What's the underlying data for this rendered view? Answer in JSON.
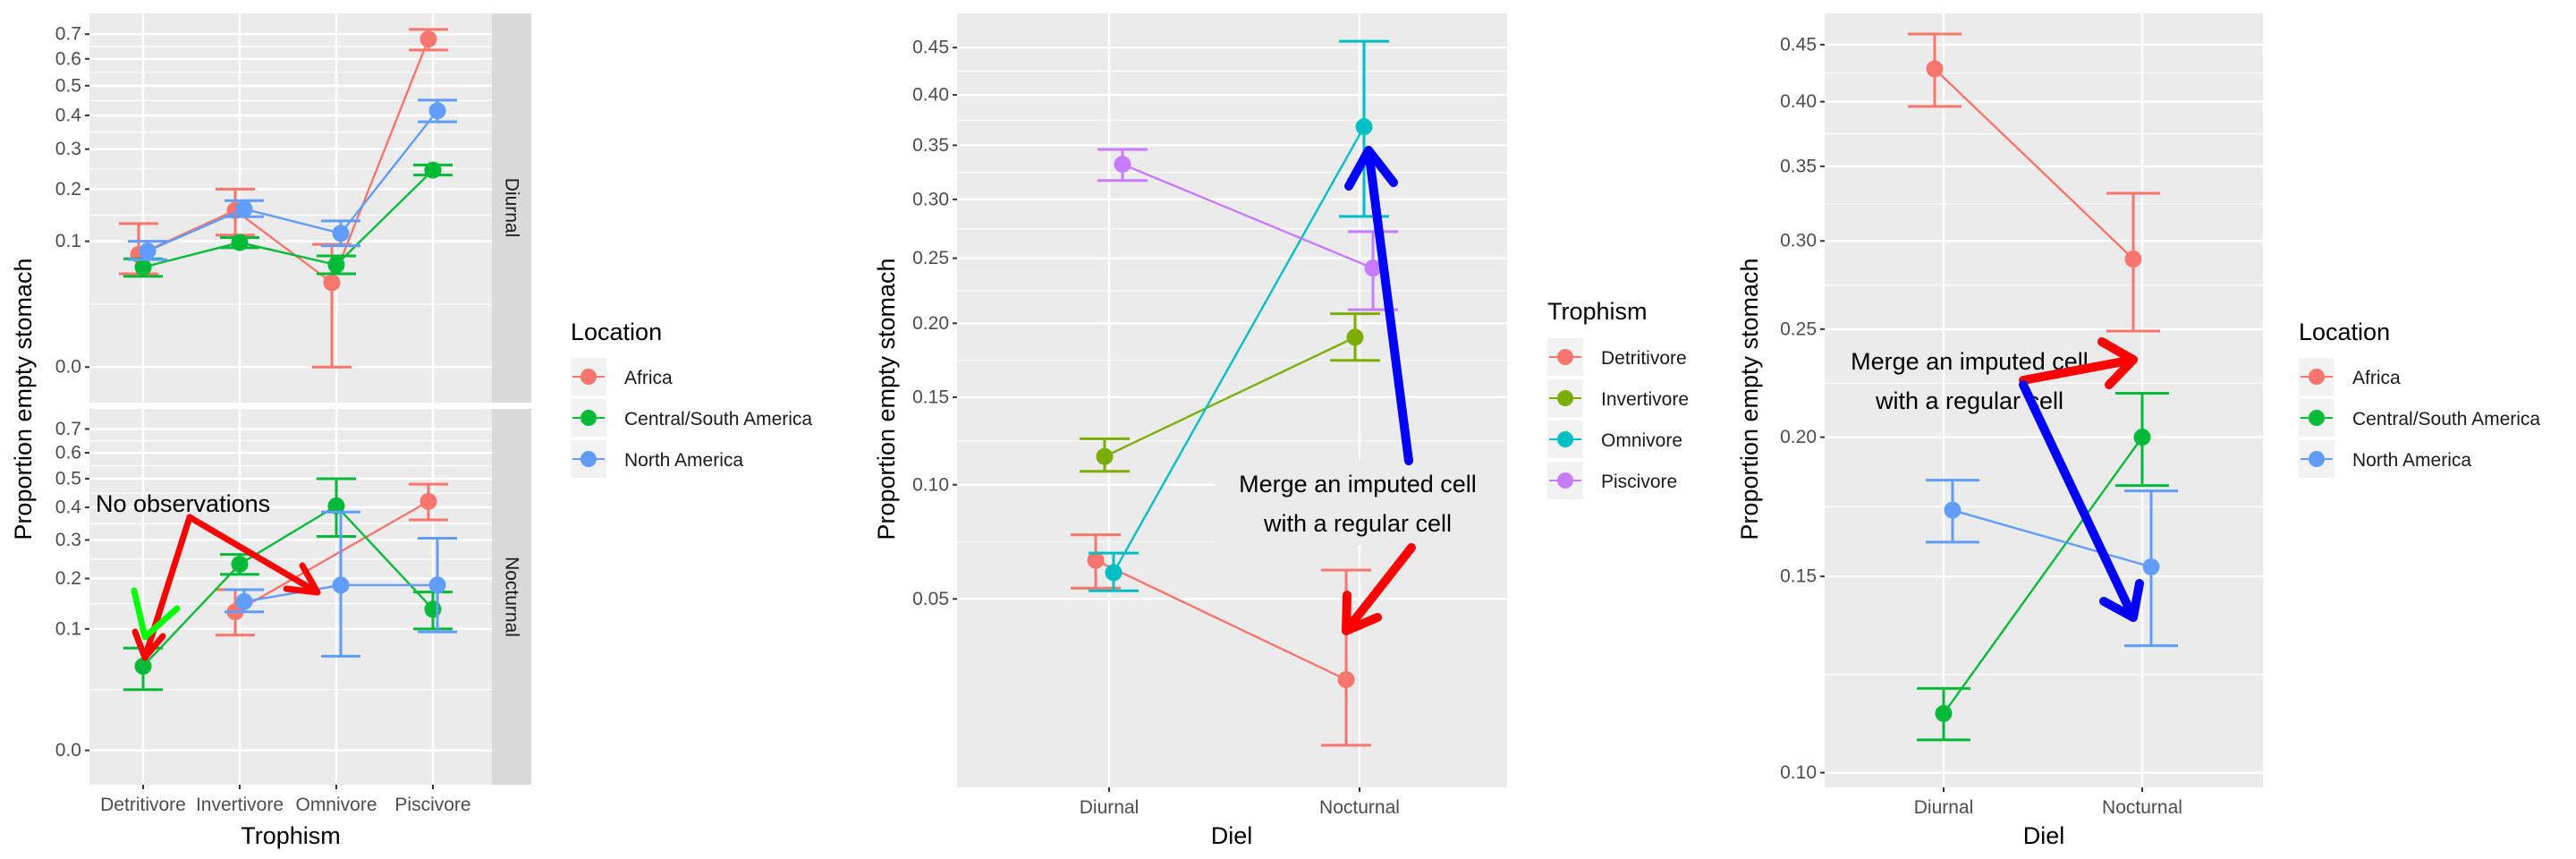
{
  "chart_data": [
    {
      "type": "line",
      "panel": "left",
      "xlabel": "Trophism",
      "ylabel": "Proportion empty stomach",
      "scale": "sqrt",
      "categories": [
        "Detritivore",
        "Invertivore",
        "Omnivore",
        "Piscivore"
      ],
      "yticks": [
        0.0,
        0.1,
        0.2,
        0.3,
        0.4,
        0.5,
        0.6,
        0.7
      ],
      "ytick_labels": [
        "0.0",
        "0.1",
        "0.2",
        "0.3",
        "0.4",
        "0.5",
        "0.6",
        "0.7"
      ],
      "ylim": [
        -0.008,
        0.79
      ],
      "facets": [
        "Diurnal",
        "Nocturnal"
      ],
      "legend": {
        "title": "Location",
        "position": "right",
        "entries": [
          "Africa",
          "Central/South America",
          "North America"
        ],
        "colors": [
          "#F8766D",
          "#00BA38",
          "#619CFF"
        ]
      },
      "series": [
        {
          "name": "Africa",
          "color": "#F8766D",
          "facet": "Diurnal",
          "values": [
            0.08,
            0.155,
            0.045,
            0.68
          ],
          "lower": [
            0.055,
            0.11,
            0.0,
            0.635
          ],
          "upper": [
            0.13,
            0.2,
            0.095,
            0.72
          ]
        },
        {
          "name": "Central/South America",
          "color": "#00BA38",
          "facet": "Diurnal",
          "values": [
            0.063,
            0.098,
            0.066,
            0.245
          ],
          "lower": [
            0.052,
            0.09,
            0.055,
            0.233
          ],
          "upper": [
            0.074,
            0.106,
            0.078,
            0.258
          ]
        },
        {
          "name": "North America",
          "color": "#619CFF",
          "facet": "Diurnal",
          "values": [
            0.085,
            0.158,
            0.113,
            0.415
          ],
          "lower": [
            0.073,
            0.143,
            0.093,
            0.38
          ],
          "upper": [
            0.1,
            0.175,
            0.135,
            0.45
          ]
        },
        {
          "name": "Africa",
          "color": "#F8766D",
          "facet": "Nocturnal",
          "values": [
            null,
            0.13,
            null,
            0.42
          ],
          "lower": [
            null,
            0.09,
            null,
            0.36
          ],
          "upper": [
            null,
            0.175,
            null,
            0.48
          ]
        },
        {
          "name": "Central/South America",
          "color": "#00BA38",
          "facet": "Nocturnal",
          "values": [
            0.048,
            0.235,
            0.405,
            0.135
          ],
          "lower": [
            0.025,
            0.21,
            0.31,
            0.1
          ],
          "upper": [
            0.071,
            0.26,
            0.5,
            0.17
          ]
        },
        {
          "name": "North America",
          "color": "#619CFF",
          "facet": "Nocturnal",
          "values": [
            null,
            0.15,
            0.185,
            0.185
          ],
          "lower": [
            null,
            0.13,
            0.06,
            0.095
          ],
          "upper": [
            null,
            0.175,
            0.385,
            0.305
          ]
        }
      ],
      "annotations": [
        {
          "text": "No observations",
          "facet": "Nocturnal"
        }
      ]
    },
    {
      "type": "line",
      "panel": "middle",
      "xlabel": "Diel",
      "ylabel": "Proportion empty stomach",
      "scale": "sqrt",
      "categories": [
        "Diurnal",
        "Nocturnal"
      ],
      "yticks": [
        0.05,
        0.1,
        0.15,
        0.2,
        0.25,
        0.3,
        0.35,
        0.4,
        0.45
      ],
      "ytick_labels": [
        "0.05",
        "0.10",
        "0.15",
        "0.20",
        "0.25",
        "0.30",
        "0.35",
        "0.40",
        "0.45"
      ],
      "ylim": [
        0.005,
        0.488
      ],
      "legend": {
        "title": "Trophism",
        "position": "right",
        "entries": [
          "Detritivore",
          "Invertivore",
          "Omnivore",
          "Piscivore"
        ],
        "colors": [
          "#F8766D",
          "#7CAE00",
          "#00BFC4",
          "#C77CFF"
        ]
      },
      "series": [
        {
          "name": "Detritivore",
          "color": "#F8766D",
          "values": [
            0.065,
            0.025
          ],
          "lower": [
            0.054,
            0.011
          ],
          "upper": [
            0.076,
            0.061
          ]
        },
        {
          "name": "Invertivore",
          "color": "#7CAE00",
          "values": [
            0.115,
            0.19
          ],
          "lower": [
            0.107,
            0.174
          ],
          "upper": [
            0.125,
            0.207
          ]
        },
        {
          "name": "Omnivore",
          "color": "#00BFC4",
          "values": [
            0.06,
            0.368
          ],
          "lower": [
            0.053,
            0.285
          ],
          "upper": [
            0.068,
            0.457
          ]
        },
        {
          "name": "Piscivore",
          "color": "#C77CFF",
          "values": [
            0.332,
            0.242
          ],
          "lower": [
            0.317,
            0.21
          ],
          "upper": [
            0.346,
            0.272
          ]
        }
      ],
      "annotations": [
        {
          "text": "Merge an imputed cell"
        },
        {
          "text": "with a regular cell"
        }
      ]
    },
    {
      "type": "line",
      "panel": "right",
      "xlabel": "Diel",
      "ylabel": "Proportion empty stomach",
      "scale": "log",
      "categories": [
        "Diurnal",
        "Nocturnal"
      ],
      "yticks": [
        0.1,
        0.15,
        0.2,
        0.25,
        0.3,
        0.35,
        0.4,
        0.45
      ],
      "ytick_labels": [
        "0.10",
        "0.15",
        "0.20",
        "0.25",
        "0.30",
        "0.35",
        "0.40",
        "0.45"
      ],
      "ylim": [
        0.097,
        0.48
      ],
      "legend": {
        "title": "Location",
        "position": "right",
        "entries": [
          "Africa",
          "Central/South America",
          "North America"
        ],
        "colors": [
          "#F8766D",
          "#00BA38",
          "#619CFF"
        ]
      },
      "series": [
        {
          "name": "Africa",
          "color": "#F8766D",
          "values": [
            0.428,
            0.289
          ],
          "lower": [
            0.396,
            0.249
          ],
          "upper": [
            0.46,
            0.331
          ]
        },
        {
          "name": "Central/South America",
          "color": "#00BA38",
          "values": [
            0.113,
            0.2
          ],
          "lower": [
            0.107,
            0.181
          ],
          "upper": [
            0.119,
            0.219
          ]
        },
        {
          "name": "North America",
          "color": "#619CFF",
          "values": [
            0.172,
            0.153
          ],
          "lower": [
            0.161,
            0.13
          ],
          "upper": [
            0.183,
            0.179
          ]
        }
      ],
      "annotations": [
        {
          "text": "Merge an imputed cell"
        },
        {
          "text": "with a regular cell"
        }
      ]
    }
  ]
}
